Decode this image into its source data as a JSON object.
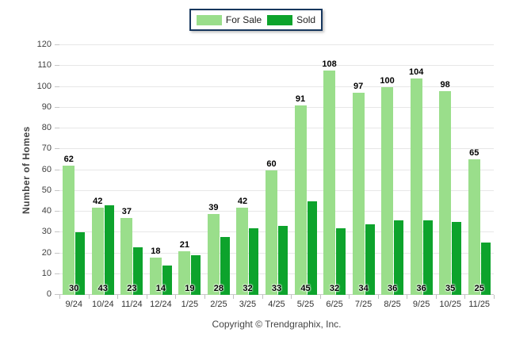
{
  "page": {
    "background_color": "#ffffff"
  },
  "legend": {
    "border_color": "#17375E",
    "items": [
      {
        "label": "For Sale",
        "color": "#9ADE8B"
      },
      {
        "label": "Sold",
        "color": "#0DA32C"
      }
    ]
  },
  "footer": {
    "text": "Copyright © Trendgraphix, Inc."
  },
  "chart_data": {
    "type": "bar",
    "title": "",
    "xlabel": "",
    "ylabel": "Number of Homes",
    "ylim": [
      0,
      120
    ],
    "ytick_step": 10,
    "yticks": [
      0,
      10,
      20,
      30,
      40,
      50,
      60,
      70,
      80,
      90,
      100,
      110,
      120
    ],
    "grid": true,
    "gridline_color": "#e7e7e7",
    "baseline_color": "#c9c9c9",
    "legend_position": "top-center",
    "categories": [
      "9/24",
      "10/24",
      "11/24",
      "12/24",
      "1/25",
      "2/25",
      "3/25",
      "4/25",
      "5/25",
      "6/25",
      "7/25",
      "8/25",
      "9/25",
      "10/25",
      "11/25"
    ],
    "series": [
      {
        "name": "For Sale",
        "color": "#9ADE8B",
        "value_label_position": "above-bar",
        "values": [
          62,
          42,
          37,
          18,
          21,
          39,
          42,
          60,
          91,
          108,
          97,
          100,
          104,
          98,
          65
        ]
      },
      {
        "name": "Sold",
        "color": "#0DA32C",
        "value_label_position": "inside-bar-bottom",
        "values": [
          30,
          43,
          23,
          14,
          19,
          28,
          32,
          33,
          45,
          32,
          34,
          36,
          36,
          35,
          25
        ]
      }
    ]
  }
}
